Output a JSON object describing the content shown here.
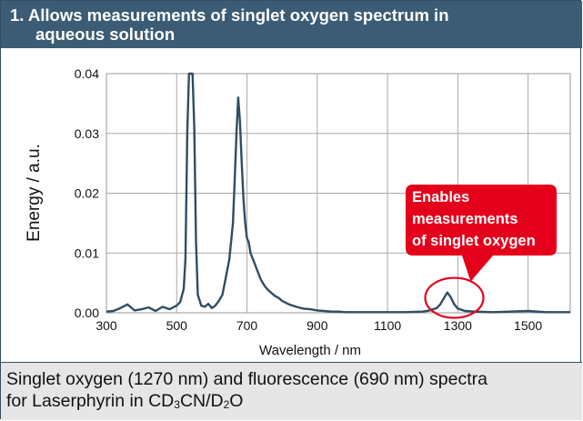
{
  "header": {
    "title_line1": "1. Allows measurements of singlet oxygen spectrum in",
    "title_line2": "aqueous solution"
  },
  "chart_data": {
    "type": "line",
    "xlabel": "Wavelength / nm",
    "ylabel": "Energy / a.u.",
    "xlim": [
      300,
      1620
    ],
    "ylim": [
      0,
      0.04
    ],
    "x_ticks": [
      300,
      500,
      700,
      900,
      1100,
      1300,
      1500
    ],
    "y_ticks": [
      0.0,
      0.01,
      0.02,
      0.03,
      0.04
    ],
    "y_tick_labels": [
      "0.00",
      "0.01",
      "0.02",
      "0.03",
      "0.04"
    ],
    "grid": true,
    "line_color": "#2f4d63",
    "series": [
      {
        "x": [
          300,
          320,
          340,
          360,
          380,
          400,
          420,
          440,
          460,
          480,
          500,
          510,
          520,
          525,
          530,
          535,
          540,
          545,
          550,
          555,
          560,
          570,
          580,
          590,
          600,
          610,
          620,
          630,
          640,
          650,
          660,
          665,
          670,
          675,
          680,
          685,
          690,
          695,
          700,
          705,
          710,
          720,
          730,
          740,
          750,
          760,
          770,
          780,
          790,
          800,
          820,
          840,
          860,
          880,
          900,
          920,
          940,
          960,
          980,
          1000,
          1050,
          1100,
          1150,
          1200,
          1220,
          1240,
          1250,
          1260,
          1270,
          1280,
          1290,
          1300,
          1320,
          1350,
          1400,
          1450,
          1500,
          1550,
          1600,
          1620
        ],
        "y": [
          0.0002,
          0.0003,
          0.0008,
          0.0014,
          0.0004,
          0.0006,
          0.0009,
          0.0003,
          0.001,
          0.0006,
          0.0012,
          0.0018,
          0.004,
          0.009,
          0.03,
          0.04,
          0.04,
          0.04,
          0.031,
          0.012,
          0.003,
          0.0012,
          0.001,
          0.0015,
          0.0008,
          0.0012,
          0.002,
          0.003,
          0.006,
          0.009,
          0.015,
          0.022,
          0.03,
          0.036,
          0.032,
          0.025,
          0.019,
          0.015,
          0.0125,
          0.0118,
          0.01,
          0.0085,
          0.007,
          0.0055,
          0.0045,
          0.0038,
          0.0033,
          0.0028,
          0.0025,
          0.002,
          0.0014,
          0.001,
          0.0007,
          0.0006,
          0.0004,
          0.0003,
          0.0002,
          0.0002,
          0.0001,
          0.0001,
          0.0001,
          0.0001,
          0.0001,
          0.0002,
          0.0004,
          0.0008,
          0.0014,
          0.0024,
          0.0034,
          0.0026,
          0.0014,
          0.0007,
          0.0003,
          0.0002,
          0.0001,
          0.0002,
          0.0003,
          0.0001,
          0.0001,
          0.0001
        ]
      }
    ],
    "annotation": {
      "lines": [
        "Enables",
        "measurements",
        "of singlet oxygen"
      ],
      "box_color": "#e4001b",
      "highlight_x": 1290,
      "highlight_y": 0.0025
    }
  },
  "caption": {
    "line1": "Singlet oxygen (1270 nm) and fluorescence (690 nm) spectra",
    "line2_prefix": "for Laserphyrin in CD",
    "line2_sub1": "3",
    "line2_mid": "CN/D",
    "line2_sub2": "2",
    "line2_suffix": "O"
  }
}
